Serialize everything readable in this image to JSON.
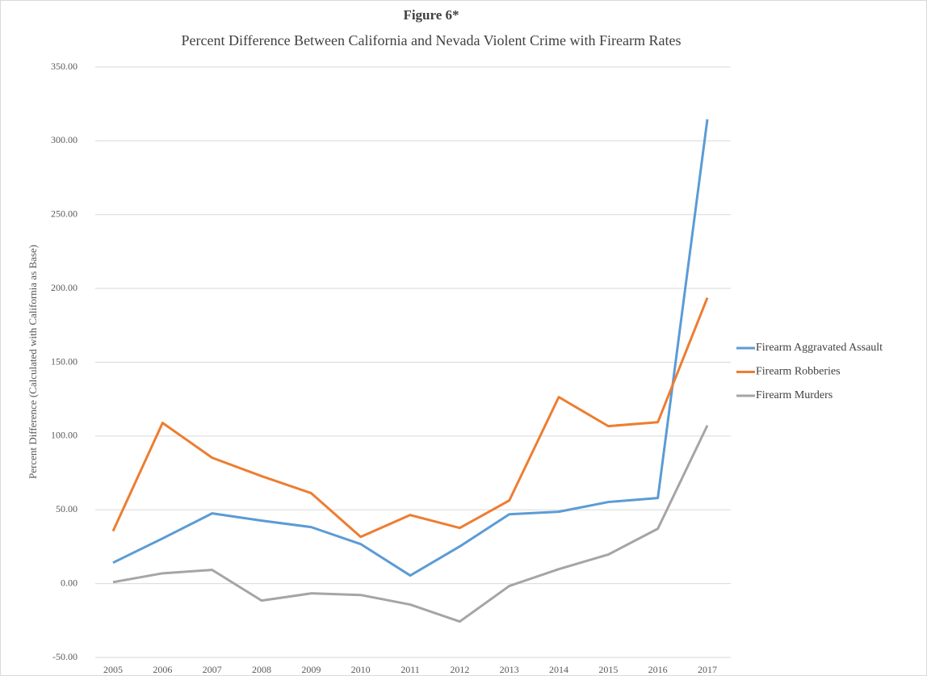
{
  "chart_data": {
    "type": "line",
    "title": "Figure 6*",
    "subtitle": "Percent Difference Between California and Nevada Violent Crime with Firearm Rates",
    "y_label": "Percent Difference (Calculated with California as Base)",
    "categories": [
      "2005",
      "2006",
      "2007",
      "2008",
      "2009",
      "2010",
      "2011",
      "2012",
      "2013",
      "2014",
      "2015",
      "2016",
      "2017"
    ],
    "series": [
      {
        "name": "Firearm Aggravated Assault",
        "color": "#5b9bd5",
        "values": [
          14.2,
          30.6,
          47.6,
          42.7,
          38.3,
          26.8,
          5.5,
          25.2,
          47,
          48.7,
          55.3,
          58,
          314.6
        ]
      },
      {
        "name": "Firearm Robberies",
        "color": "#ed7d31",
        "values": [
          35.6,
          108.9,
          85.3,
          72.8,
          61.3,
          31.7,
          46.5,
          37.7,
          56.3,
          126.4,
          106.7,
          109.4,
          193.7
        ]
      },
      {
        "name": "Firearm Murders",
        "color": "#a5a5a5",
        "values": [
          1,
          7,
          9.3,
          -11.5,
          -6.6,
          -7.7,
          -14.2,
          -25.7,
          -1.6,
          9.8,
          19.7,
          37.2,
          107.2
        ]
      }
    ],
    "ylim": [
      -50,
      350
    ],
    "yticks": [
      {
        "value": -50,
        "label": "-50.00"
      },
      {
        "value": 0,
        "label": "0.00"
      },
      {
        "value": 50,
        "label": "50.00"
      },
      {
        "value": 100,
        "label": "100.00"
      },
      {
        "value": 150,
        "label": "150.00"
      },
      {
        "value": 200,
        "label": "200.00"
      },
      {
        "value": 250,
        "label": "250.00"
      },
      {
        "value": 300,
        "label": "300.00"
      },
      {
        "value": 350,
        "label": "350.00"
      }
    ],
    "grid": true,
    "legend": "right"
  }
}
